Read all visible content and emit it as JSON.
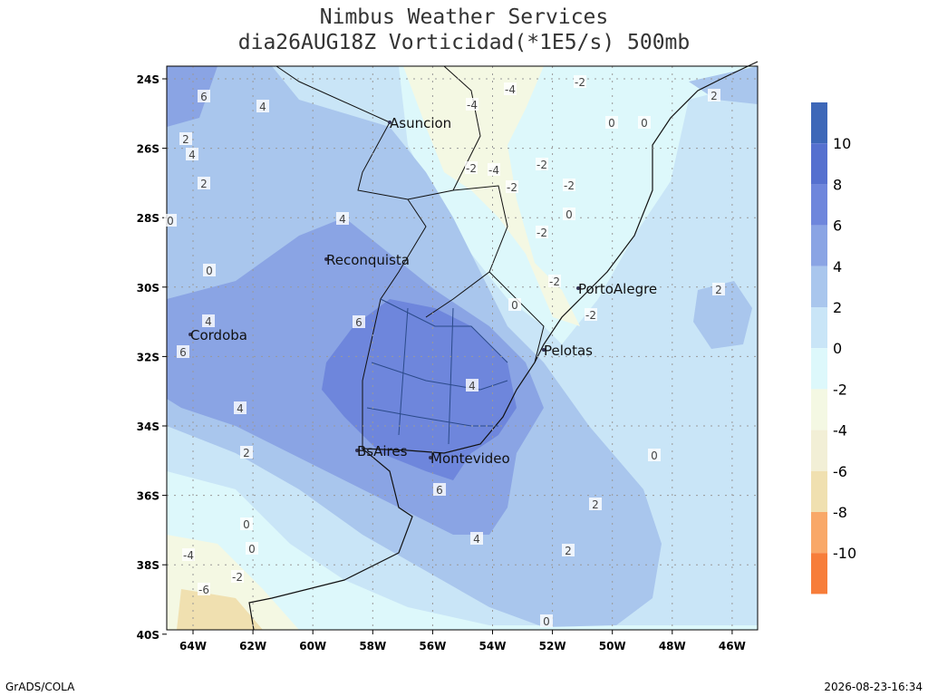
{
  "header": {
    "title": "Nimbus Weather Services",
    "subtitle": "dia26AUG18Z Vorticidad(*1E5/s) 500mb"
  },
  "map": {
    "lat_labels": [
      "24S",
      "26S",
      "28S",
      "30S",
      "32S",
      "34S",
      "36S",
      "38S",
      "40S"
    ],
    "lon_labels": [
      "64W",
      "62W",
      "60W",
      "58W",
      "56W",
      "54W",
      "52W",
      "50W",
      "48W",
      "46W"
    ],
    "cities": [
      "Asuncion",
      "Reconquista",
      "Cordoba",
      "PortoAlegre",
      "Pelotas",
      "BsAires",
      "Montevideo"
    ],
    "contour_labels": [
      2,
      4,
      2,
      0,
      0,
      4,
      6,
      4,
      6,
      4,
      6,
      4,
      2,
      6,
      4,
      0,
      0,
      -4,
      -6,
      -2,
      -4,
      -4,
      -2,
      -2,
      -4,
      -2,
      -2,
      -2,
      0,
      -2,
      -2,
      0,
      -2,
      0,
      0,
      2,
      2,
      4,
      2,
      2,
      0,
      0
    ]
  },
  "colorbar": {
    "levels": [
      10,
      8,
      6,
      4,
      2,
      0,
      -2,
      -4,
      -6,
      -8,
      -10
    ],
    "colors": [
      "#3d67b8",
      "#5570cf",
      "#6e86dc",
      "#8aa4e4",
      "#a9c6ed",
      "#c9e5f7",
      "#ddf8fb",
      "#f4f8e3",
      "#f2efd6",
      "#f0e0b0",
      "#f9a868",
      "#f77d3a"
    ]
  },
  "footer": {
    "left": "GrADS/COLA",
    "right": "2026-08-23-16:34"
  }
}
